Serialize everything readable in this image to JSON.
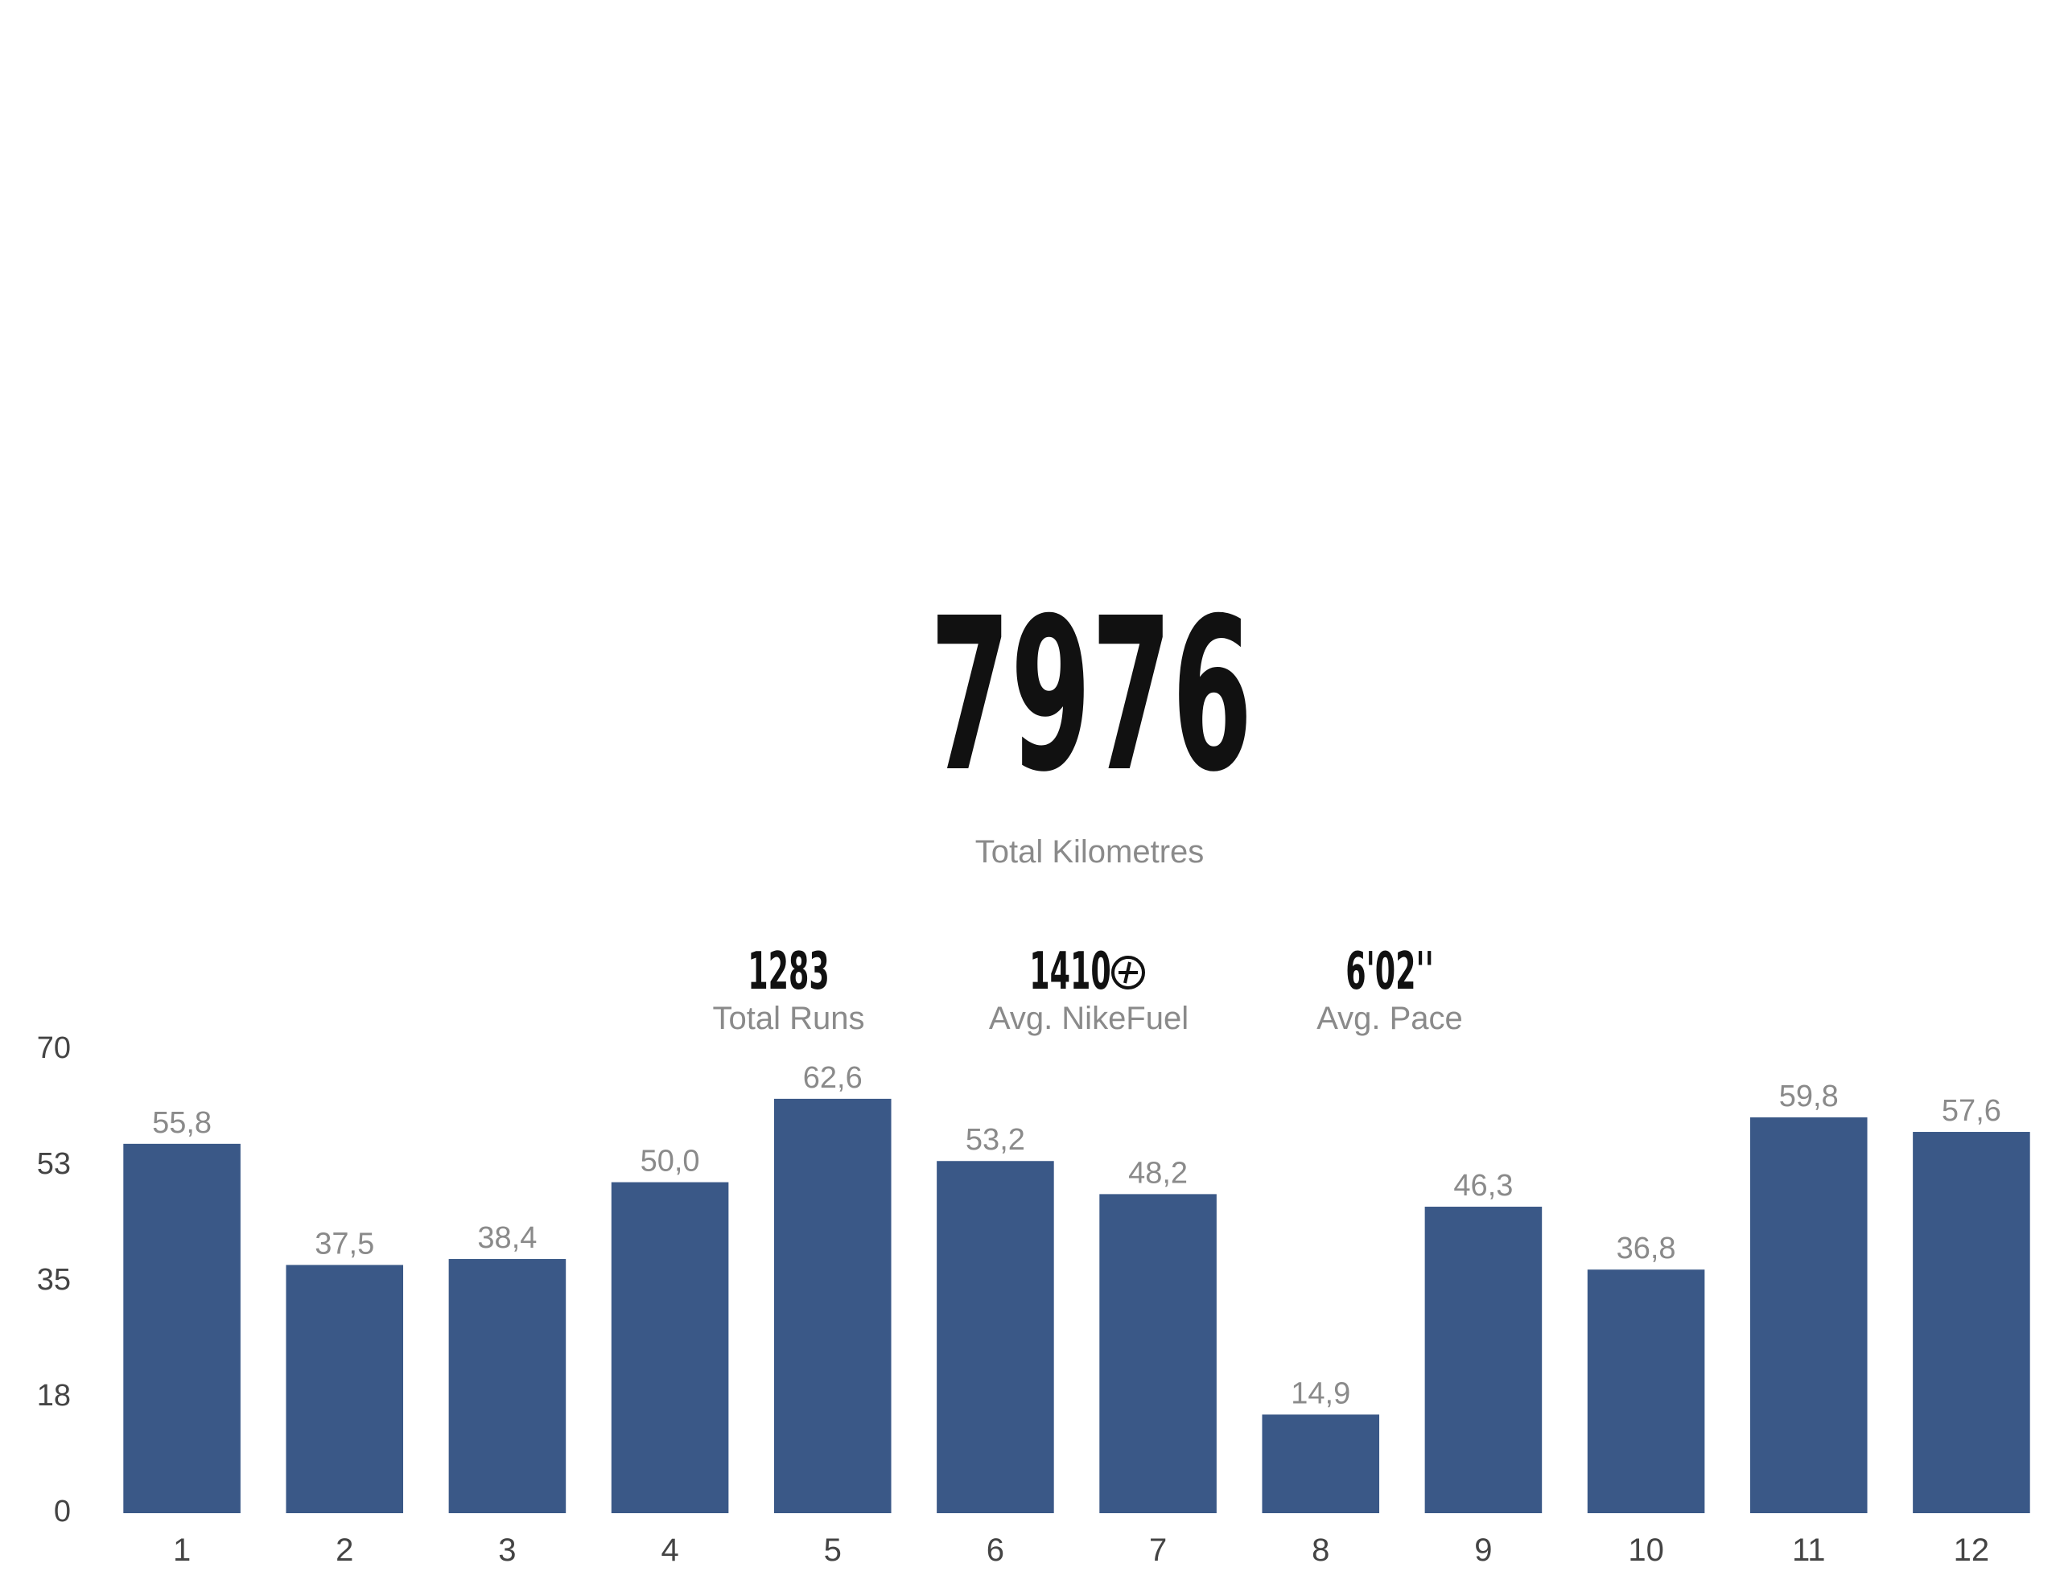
{
  "summary": {
    "total": "7976",
    "total_label": "Total Kilometres"
  },
  "stats": [
    {
      "value": "1283",
      "label": "Total Runs"
    },
    {
      "value": "1410",
      "label": "Avg. NikeFuel"
    },
    {
      "value": "6'02''",
      "label": "Avg. Pace"
    }
  ],
  "chart_data": {
    "type": "bar",
    "categories": [
      "1",
      "2",
      "3",
      "4",
      "5",
      "6",
      "7",
      "8",
      "9",
      "10",
      "11",
      "12"
    ],
    "values": [
      55.8,
      37.5,
      38.4,
      50.0,
      62.6,
      53.2,
      48.2,
      14.9,
      46.3,
      36.8,
      59.8,
      57.6
    ],
    "value_labels": [
      "55,8",
      "37,5",
      "38,4",
      "50,0",
      "62,6",
      "53,2",
      "48,2",
      "14,9",
      "46,3",
      "36,8",
      "59,8",
      "57,6"
    ],
    "color": "#3a5887",
    "ylim": [
      0,
      70
    ],
    "yticks": [
      0,
      {
        "value": 17.5,
        "label": "18"
      },
      35,
      {
        "value": 52.5,
        "label": "53"
      },
      70
    ],
    "grid": false
  }
}
